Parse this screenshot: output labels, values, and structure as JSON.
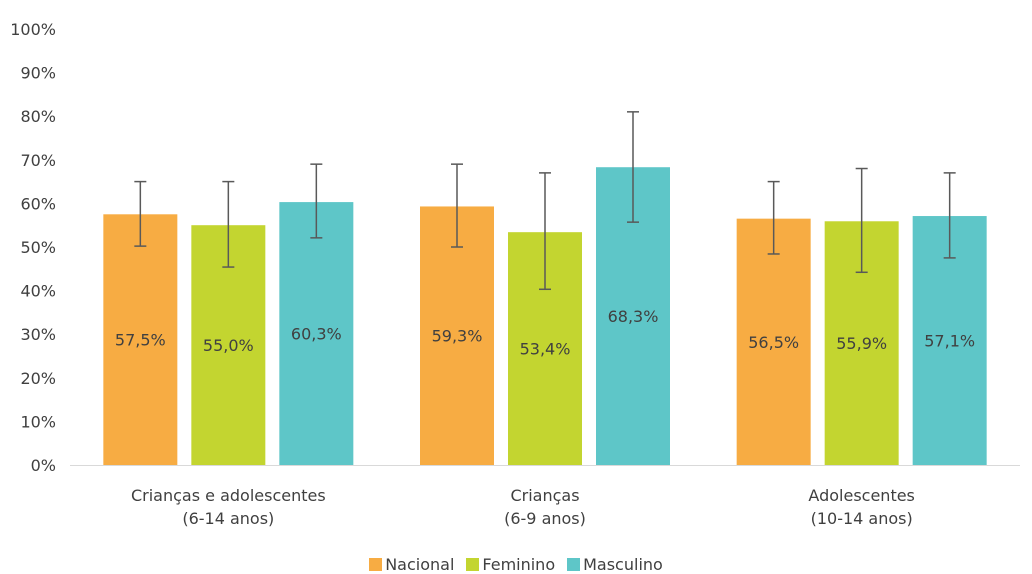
{
  "chart_data": {
    "type": "bar",
    "ylim": [
      0,
      100
    ],
    "y_ticks": [
      "0%",
      "10%",
      "20%",
      "30%",
      "40%",
      "50%",
      "60%",
      "70%",
      "80%",
      "90%",
      "100%"
    ],
    "grid": false,
    "legend_position": "bottom",
    "categories": [
      [
        "Crianças e adolescentes",
        "(6-14 anos)"
      ],
      [
        "Crianças",
        "(6-9 anos)"
      ],
      [
        "Adolescentes",
        "(10-14 anos)"
      ]
    ],
    "series": [
      {
        "name": "Nacional",
        "color": "#F7AC43",
        "values": [
          57.5,
          59.3,
          56.5
        ],
        "labels": [
          "57,5%",
          "59,3%",
          "56,5%"
        ],
        "error_low": [
          50.2,
          50.0,
          48.4
        ],
        "error_high": [
          65.0,
          69.0,
          65.0
        ]
      },
      {
        "name": "Feminino",
        "color": "#C3D530",
        "values": [
          55.0,
          53.4,
          55.9
        ],
        "labels": [
          "55,0%",
          "53,4%",
          "55,9%"
        ],
        "error_low": [
          45.4,
          40.3,
          44.2
        ],
        "error_high": [
          65.0,
          67.0,
          68.0
        ]
      },
      {
        "name": "Masculino",
        "color": "#5EC6C8",
        "values": [
          60.3,
          68.3,
          57.1
        ],
        "labels": [
          "60,3%",
          "68,3%",
          "57,1%"
        ],
        "error_low": [
          52.1,
          55.7,
          47.5
        ],
        "error_high": [
          69.0,
          81.0,
          67.0
        ]
      }
    ]
  }
}
